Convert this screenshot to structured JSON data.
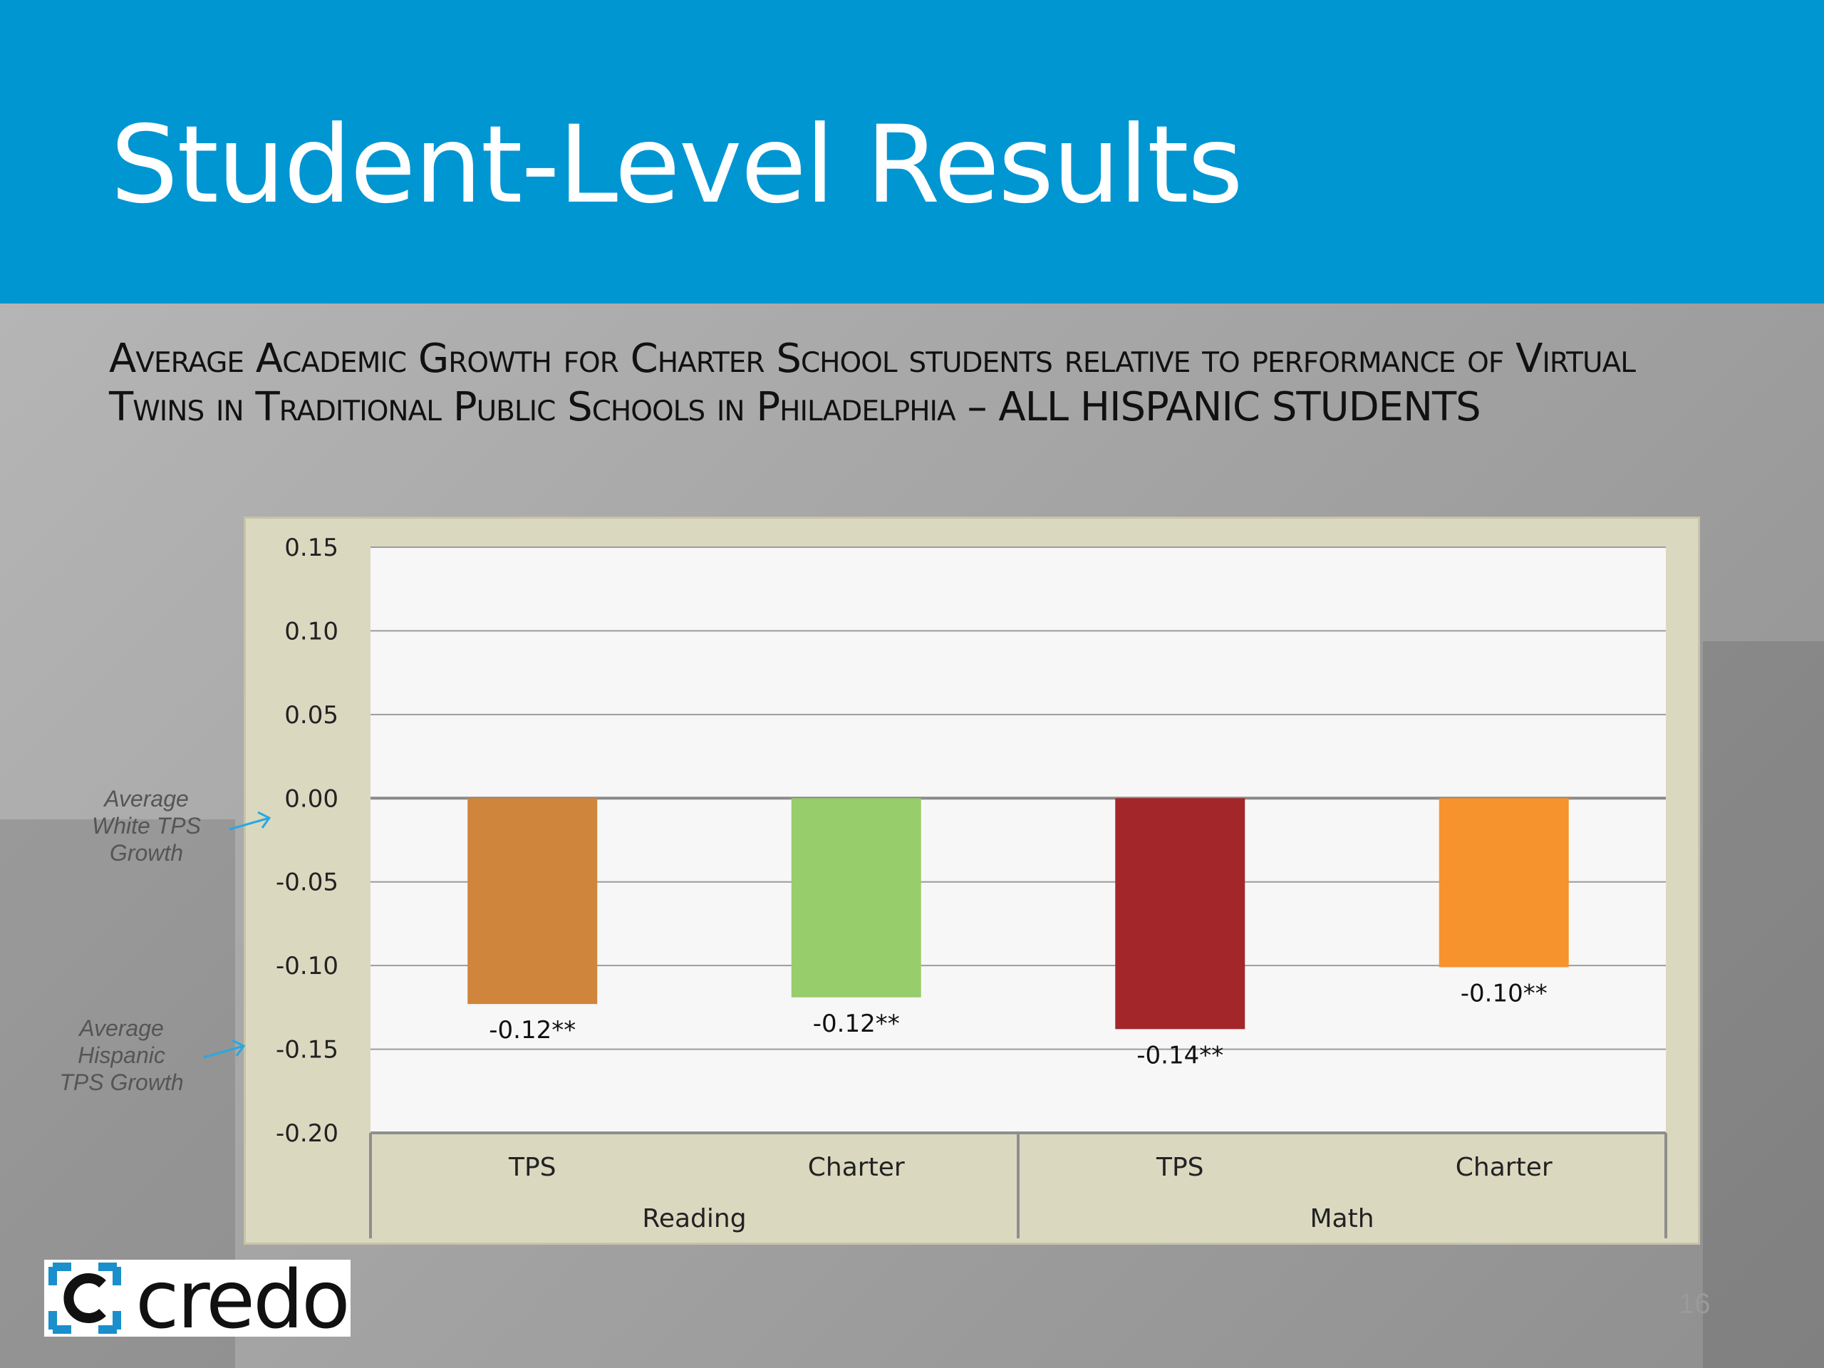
{
  "slide": {
    "title": "Student-Level Results",
    "subtitle": "Average Academic Growth for Charter School students relative to performance of Virtual Twins in Traditional Public Schools in Philadelphia – ALL HISPANIC STUDENTS",
    "page_number": "16",
    "logo_text": "credo"
  },
  "annotations": {
    "white": "Average White TPS Growth",
    "hispanic": "Average Hispanic TPS Growth"
  },
  "colors": {
    "header": "#0096d2",
    "plot_bg": "#f7f7f7",
    "frame": "#dbd8c0",
    "arrow": "#29a8e0"
  },
  "chart_data": {
    "type": "bar",
    "groups": [
      "Reading",
      "Math"
    ],
    "categories": [
      "TPS",
      "Charter",
      "TPS",
      "Charter"
    ],
    "group_of_category": [
      0,
      0,
      1,
      1
    ],
    "values": [
      -0.123,
      -0.119,
      -0.138,
      -0.101
    ],
    "data_labels": [
      "-0.12**",
      "-0.12**",
      "-0.14**",
      "-0.10**"
    ],
    "bar_colors": [
      "#cf853b",
      "#97cd6b",
      "#a3272a",
      "#f6932c"
    ],
    "ylim": [
      -0.2,
      0.15
    ],
    "yticks": [
      0.15,
      0.1,
      0.05,
      0.0,
      -0.05,
      -0.1,
      -0.15,
      -0.2
    ],
    "ytick_labels": [
      "0.15",
      "0.10",
      "0.05",
      "0.00",
      "-0.05",
      "-0.10",
      "-0.15",
      "-0.20"
    ],
    "grid": true,
    "title": "",
    "xlabel": "",
    "ylabel": ""
  }
}
